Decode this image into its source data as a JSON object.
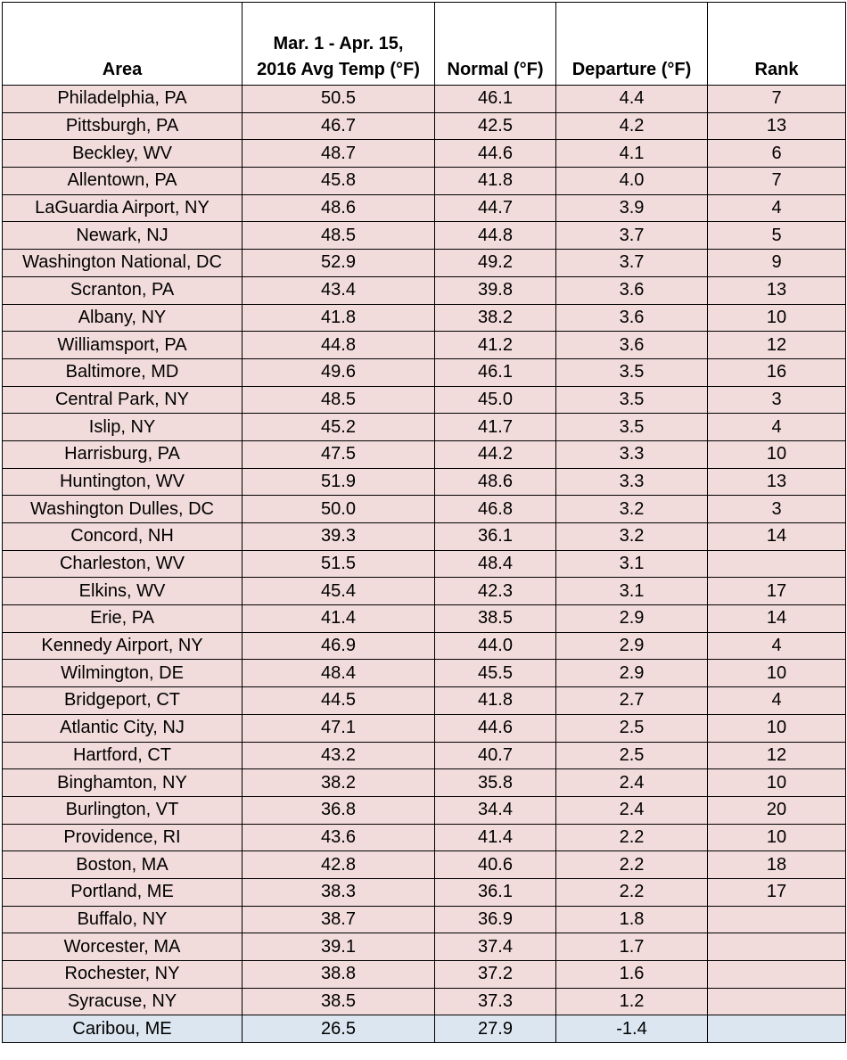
{
  "table": {
    "header": [
      "Area",
      "Mar. 1 - Apr. 15,\n2016 Avg Temp (°F)",
      "Normal (°F)",
      "Departure (°F)",
      "Rank"
    ],
    "rows": [
      [
        "Philadelphia, PA",
        "50.5",
        "46.1",
        "4.4",
        "7"
      ],
      [
        "Pittsburgh, PA",
        "46.7",
        "42.5",
        "4.2",
        "13"
      ],
      [
        "Beckley, WV",
        "48.7",
        "44.6",
        "4.1",
        "6"
      ],
      [
        "Allentown, PA",
        "45.8",
        "41.8",
        "4.0",
        "7"
      ],
      [
        "LaGuardia Airport, NY",
        "48.6",
        "44.7",
        "3.9",
        "4"
      ],
      [
        "Newark, NJ",
        "48.5",
        "44.8",
        "3.7",
        "5"
      ],
      [
        "Washington National, DC",
        "52.9",
        "49.2",
        "3.7",
        "9"
      ],
      [
        "Scranton, PA",
        "43.4",
        "39.8",
        "3.6",
        "13"
      ],
      [
        "Albany, NY",
        "41.8",
        "38.2",
        "3.6",
        "10"
      ],
      [
        "Williamsport, PA",
        "44.8",
        "41.2",
        "3.6",
        "12"
      ],
      [
        "Baltimore, MD",
        "49.6",
        "46.1",
        "3.5",
        "16"
      ],
      [
        "Central Park, NY",
        "48.5",
        "45.0",
        "3.5",
        "3"
      ],
      [
        "Islip, NY",
        "45.2",
        "41.7",
        "3.5",
        "4"
      ],
      [
        "Harrisburg, PA",
        "47.5",
        "44.2",
        "3.3",
        "10"
      ],
      [
        "Huntington, WV",
        "51.9",
        "48.6",
        "3.3",
        "13"
      ],
      [
        "Washington Dulles, DC",
        "50.0",
        "46.8",
        "3.2",
        "3"
      ],
      [
        "Concord, NH",
        "39.3",
        "36.1",
        "3.2",
        "14"
      ],
      [
        "Charleston, WV",
        "51.5",
        "48.4",
        "3.1",
        null
      ],
      [
        "Elkins, WV",
        "45.4",
        "42.3",
        "3.1",
        "17"
      ],
      [
        "Erie, PA",
        "41.4",
        "38.5",
        "2.9",
        "14"
      ],
      [
        "Kennedy Airport, NY",
        "46.9",
        "44.0",
        "2.9",
        "4"
      ],
      [
        "Wilmington, DE",
        "48.4",
        "45.5",
        "2.9",
        "10"
      ],
      [
        "Bridgeport, CT",
        "44.5",
        "41.8",
        "2.7",
        "4"
      ],
      [
        "Atlantic City, NJ",
        "47.1",
        "44.6",
        "2.5",
        "10"
      ],
      [
        "Hartford, CT",
        "43.2",
        "40.7",
        "2.5",
        "12"
      ],
      [
        "Binghamton, NY",
        "38.2",
        "35.8",
        "2.4",
        "10"
      ],
      [
        "Burlington, VT",
        "36.8",
        "34.4",
        "2.4",
        "20"
      ],
      [
        "Providence, RI",
        "43.6",
        "41.4",
        "2.2",
        "10"
      ],
      [
        "Boston, MA",
        "42.8",
        "40.6",
        "2.2",
        "18"
      ],
      [
        "Portland, ME",
        "38.3",
        "36.1",
        "2.2",
        "17"
      ],
      [
        "Buffalo, NY",
        "38.7",
        "36.9",
        "1.8",
        null
      ],
      [
        "Worcester, MA",
        "39.1",
        "37.4",
        "1.7",
        null
      ],
      [
        "Rochester, NY",
        "38.8",
        "37.2",
        "1.6",
        null
      ],
      [
        "Syracuse, NY",
        "38.5",
        "37.3",
        "1.2",
        null
      ],
      [
        "Caribou, ME",
        "26.5",
        "27.9",
        "-1.4",
        null
      ]
    ]
  }
}
